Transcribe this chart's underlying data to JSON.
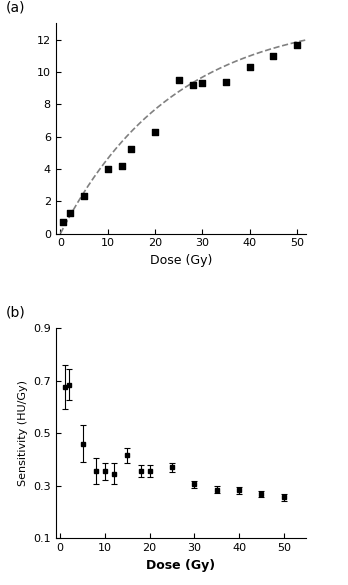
{
  "plot_a": {
    "xlabel": "Dose (Gy)",
    "xlim": [
      -1,
      52
    ],
    "ylim": [
      0,
      13
    ],
    "yticks": [
      0,
      2,
      4,
      6,
      8,
      10,
      12
    ],
    "xticks": [
      0,
      10,
      20,
      30,
      40,
      50
    ],
    "scatter_x": [
      0.5,
      2,
      5,
      10,
      13,
      15,
      20,
      25,
      28,
      30,
      35,
      40,
      45,
      50
    ],
    "scatter_y": [
      0.7,
      1.3,
      2.3,
      4.0,
      4.15,
      5.2,
      6.3,
      9.5,
      9.2,
      9.3,
      9.4,
      10.3,
      11.0,
      11.65
    ],
    "curve_A": 13.5,
    "curve_b": 0.042,
    "label": "(a)"
  },
  "plot_b": {
    "xlabel": "Dose (Gy)",
    "ylabel": "Sensitivity (HU/Gy)",
    "xlim": [
      -1,
      55
    ],
    "ylim": [
      0.1,
      0.9
    ],
    "yticks": [
      0.1,
      0.3,
      0.5,
      0.7,
      0.9
    ],
    "xticks": [
      0,
      10,
      20,
      30,
      40,
      50
    ],
    "scatter_x": [
      1,
      2,
      5,
      8,
      10,
      12,
      15,
      18,
      20,
      25,
      30,
      35,
      40,
      45,
      50
    ],
    "scatter_y": [
      0.675,
      0.685,
      0.46,
      0.355,
      0.355,
      0.345,
      0.415,
      0.355,
      0.355,
      0.37,
      0.305,
      0.285,
      0.282,
      0.268,
      0.255
    ],
    "scatter_yerr": [
      0.085,
      0.06,
      0.07,
      0.05,
      0.033,
      0.04,
      0.028,
      0.023,
      0.022,
      0.018,
      0.013,
      0.013,
      0.013,
      0.012,
      0.012
    ],
    "label": "(b)"
  }
}
